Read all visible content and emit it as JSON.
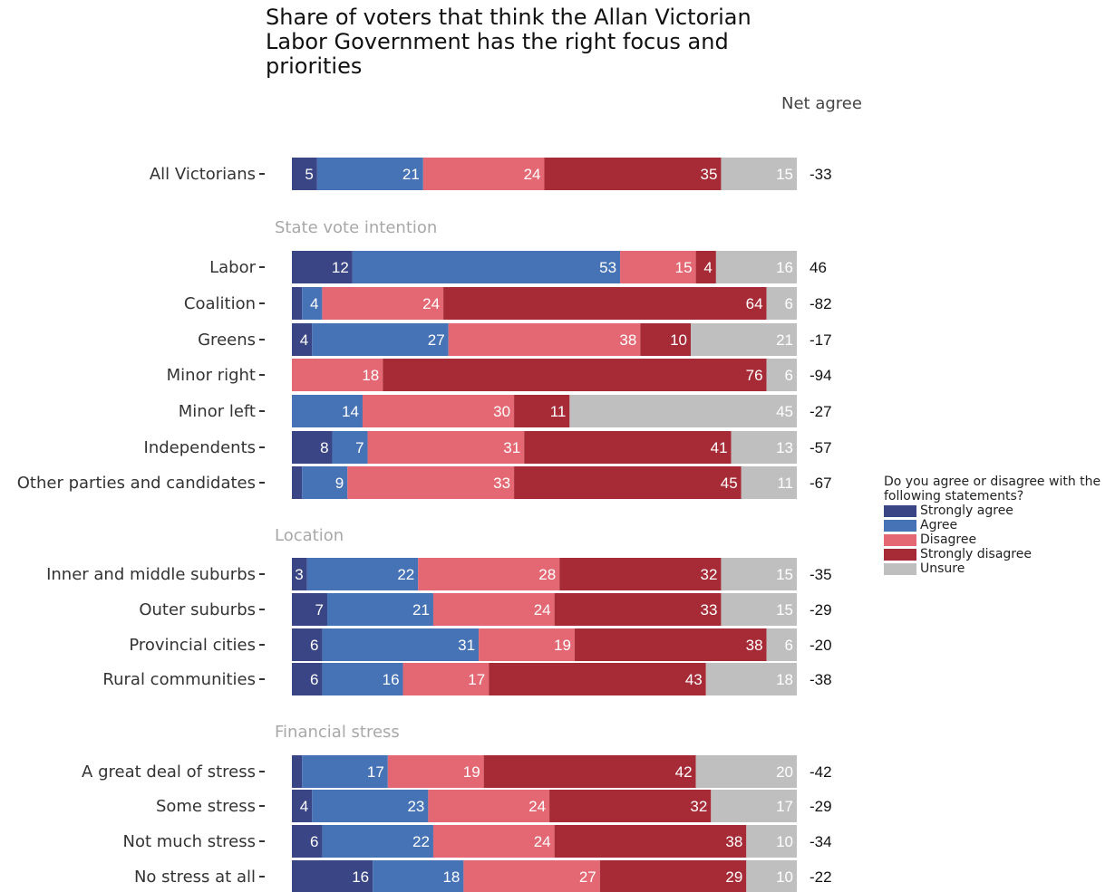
{
  "chart_data": {
    "type": "bar",
    "orientation": "horizontal-stacked",
    "title": "Share of voters that think the Allan Victorian Labor Government has the right focus and priorities",
    "net_label": "Net agree",
    "legend": {
      "title": "Do you agree or disagree with the following statements?",
      "placement": "right"
    },
    "series": [
      {
        "name": "Strongly agree",
        "color": "#3a4585"
      },
      {
        "name": "Agree",
        "color": "#4672b6"
      },
      {
        "name": "Disagree",
        "color": "#e46873"
      },
      {
        "name": "Strongly disagree",
        "color": "#a62b36"
      },
      {
        "name": "Unsure",
        "color": "#bfbfbf"
      }
    ],
    "groups": [
      {
        "heading": "",
        "rows": [
          {
            "label": "All Victorians",
            "values": [
              5,
              21,
              24,
              35,
              15
            ],
            "net": "-33"
          }
        ]
      },
      {
        "heading": "State vote intention",
        "rows": [
          {
            "label": "Labor",
            "values": [
              12,
              53,
              15,
              4,
              16
            ],
            "net": "46"
          },
          {
            "label": "Coalition",
            "values": [
              2,
              4,
              24,
              64,
              6
            ],
            "net": "-82"
          },
          {
            "label": "Greens",
            "values": [
              4,
              27,
              38,
              10,
              21
            ],
            "net": "-17"
          },
          {
            "label": "Minor right",
            "values": [
              0,
              0,
              18,
              76,
              6
            ],
            "net": "-94"
          },
          {
            "label": "Minor left",
            "values": [
              0,
              14,
              30,
              11,
              45
            ],
            "net": "-27"
          },
          {
            "label": "Independents",
            "values": [
              8,
              7,
              31,
              41,
              13
            ],
            "net": "-57"
          },
          {
            "label": "Other parties and candidates",
            "values": [
              2,
              9,
              33,
              45,
              11
            ],
            "net": "-67"
          }
        ]
      },
      {
        "heading": "Location",
        "rows": [
          {
            "label": "Inner and middle suburbs",
            "values": [
              3,
              22,
              28,
              32,
              15
            ],
            "net": "-35"
          },
          {
            "label": "Outer suburbs",
            "values": [
              7,
              21,
              24,
              33,
              15
            ],
            "net": "-29"
          },
          {
            "label": "Provincial cities",
            "values": [
              6,
              31,
              19,
              38,
              6
            ],
            "net": "-20"
          },
          {
            "label": "Rural communities",
            "values": [
              6,
              16,
              17,
              43,
              18
            ],
            "net": "-38"
          }
        ]
      },
      {
        "heading": "Financial stress",
        "rows": [
          {
            "label": "A great deal of stress",
            "values": [
              2,
              17,
              19,
              42,
              20
            ],
            "net": "-42"
          },
          {
            "label": "Some stress",
            "values": [
              4,
              23,
              24,
              32,
              17
            ],
            "net": "-29"
          },
          {
            "label": "Not much stress",
            "values": [
              6,
              22,
              24,
              38,
              10
            ],
            "net": "-34"
          },
          {
            "label": "No stress at all",
            "values": [
              16,
              18,
              27,
              29,
              10
            ],
            "net": "-22"
          }
        ]
      }
    ]
  }
}
